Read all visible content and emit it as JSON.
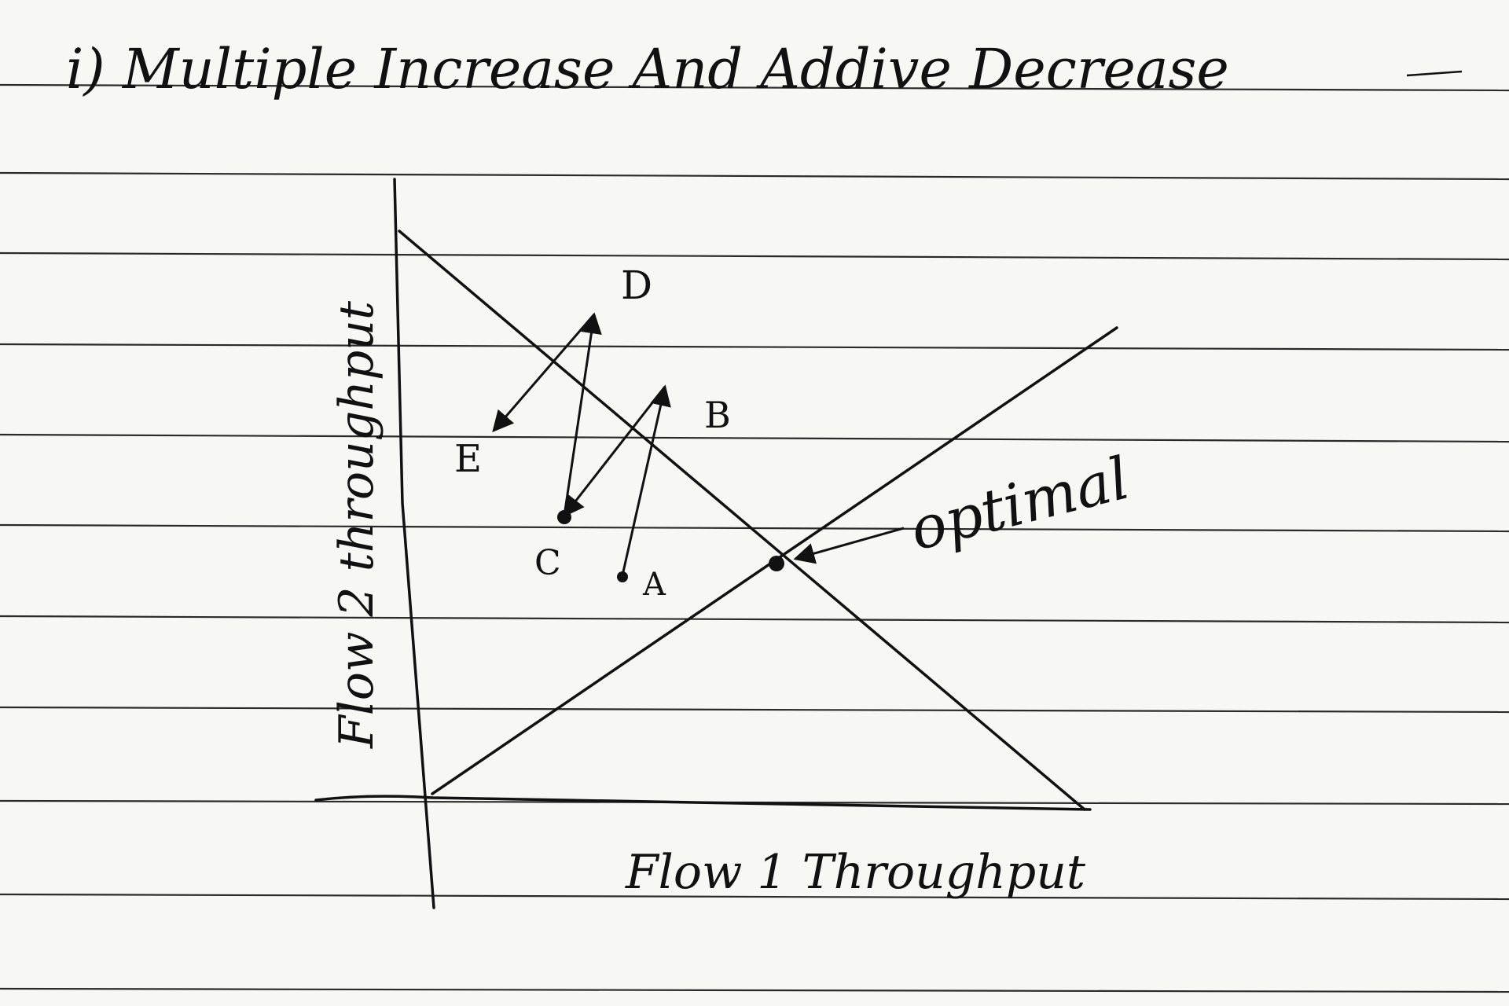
{
  "title": "i) Multiple Increase And Addive Decrease",
  "axes": {
    "x_label": "Flow 1 Throughput",
    "y_label": "Flow 2 throughput"
  },
  "points": {
    "A": "A",
    "B": "B",
    "C": "C",
    "D": "D",
    "E": "E"
  },
  "optimal_label": "optimal",
  "colors": {
    "paper": "#f7f7f4",
    "ruled_line": "#2a2a2a",
    "ink": "#111111"
  }
}
